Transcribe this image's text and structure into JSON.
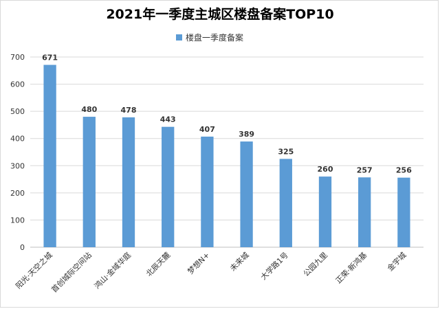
{
  "chart_data": {
    "type": "bar",
    "title": "2021年一季度主城区楼盘备案TOP10",
    "xlabel": "",
    "ylabel": "",
    "ylim": [
      0,
      700
    ],
    "yticks": [
      0,
      100,
      200,
      300,
      400,
      500,
      600,
      700
    ],
    "grid": true,
    "legend_position": "top",
    "bar_color": "#5b9bd5",
    "categories": [
      "阳光·天空之城",
      "首创城际空间站",
      "鸿山·金域华庭",
      "北辰天麓",
      "梦想N+",
      "未来城",
      "大学路1号",
      "公园九里",
      "正荣·新鸿基",
      "金宇城"
    ],
    "series": [
      {
        "name": "楼盘一季度备案",
        "values": [
          671,
          480,
          478,
          443,
          407,
          389,
          325,
          260,
          257,
          256
        ]
      }
    ]
  }
}
